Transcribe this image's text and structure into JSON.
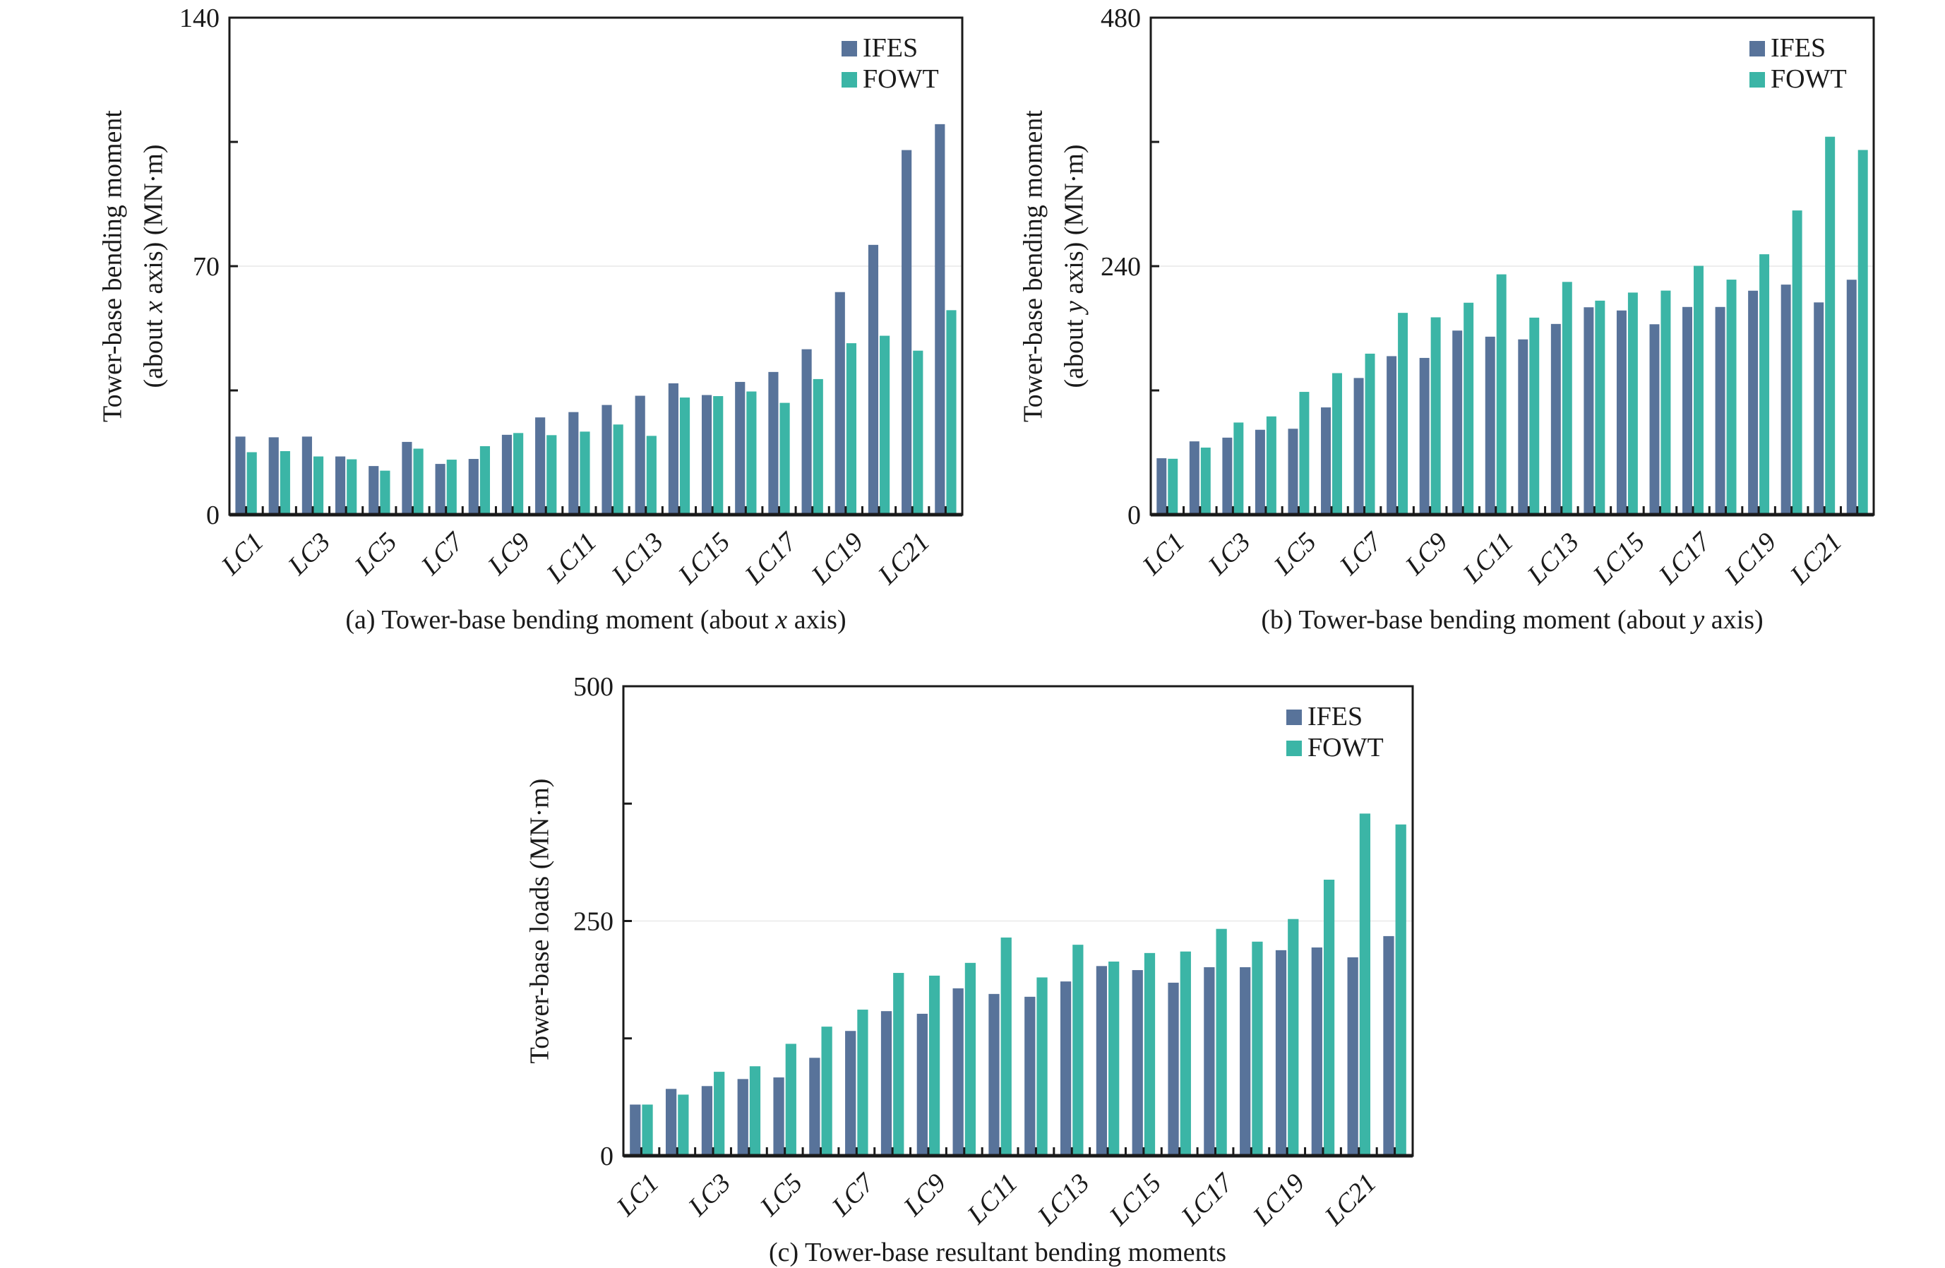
{
  "colors": {
    "IFES": "#58739a",
    "FOWT": "#3bb5a6",
    "axis": "#1a1a1a",
    "grid": "#eeeeee"
  },
  "chart_data": [
    {
      "id": "a",
      "type": "bar",
      "caption": "(a) Tower-base bending moment (about x axis)",
      "caption_parts": [
        "(a) Tower-base bending moment (about ",
        "x",
        " axis)"
      ],
      "xlabel": "",
      "ylabel_lines": [
        [
          "Tower-base bending moment"
        ],
        [
          "(about ",
          "x",
          " axis) (MN·m)"
        ]
      ],
      "ylim": [
        0,
        140
      ],
      "yticks": [
        0,
        70,
        140
      ],
      "yminor": [
        35,
        105
      ],
      "grid": [
        70
      ],
      "legend": {
        "position": "top-right",
        "entries": [
          "IFES",
          "FOWT"
        ]
      },
      "categories": [
        "LC1",
        "LC2",
        "LC3",
        "LC4",
        "LC5",
        "LC6",
        "LC7",
        "LC8",
        "LC9",
        "LC10",
        "LC11",
        "LC12",
        "LC13",
        "LC14",
        "LC15",
        "LC16",
        "LC17",
        "LC18",
        "LC19",
        "LC20",
        "LC21",
        "LC22"
      ],
      "xtick_labels_shown": [
        "LC1",
        "LC3",
        "LC5",
        "LC7",
        "LC9",
        "LC11",
        "LC13",
        "LC15",
        "LC17",
        "LC19",
        "LC21"
      ],
      "series": [
        {
          "name": "IFES",
          "values": [
            22.0,
            21.8,
            22.0,
            16.4,
            13.7,
            20.5,
            14.3,
            15.7,
            22.5,
            27.4,
            28.9,
            30.9,
            33.5,
            37.0,
            33.7,
            37.4,
            40.2,
            46.6,
            62.7,
            76.0,
            102.7,
            110.0
          ]
        },
        {
          "name": "FOWT",
          "values": [
            17.6,
            17.9,
            16.4,
            15.6,
            12.4,
            18.6,
            15.5,
            19.3,
            23.0,
            22.4,
            23.4,
            25.4,
            22.2,
            33.0,
            33.4,
            34.7,
            31.5,
            38.2,
            48.3,
            50.4,
            46.2,
            57.6
          ]
        }
      ]
    },
    {
      "id": "b",
      "type": "bar",
      "caption": "(b) Tower-base bending moment (about y axis)",
      "caption_parts": [
        "(b) Tower-base bending moment (about ",
        "y",
        " axis)"
      ],
      "xlabel": "",
      "ylabel_lines": [
        [
          "Tower-base bending moment"
        ],
        [
          "(about ",
          "y",
          " axis) (MN·m)"
        ]
      ],
      "ylim": [
        0,
        480
      ],
      "yticks": [
        0,
        240,
        480
      ],
      "yminor": [
        120,
        360
      ],
      "grid": [
        240
      ],
      "legend": {
        "position": "top-right",
        "entries": [
          "IFES",
          "FOWT"
        ]
      },
      "categories": [
        "LC1",
        "LC2",
        "LC3",
        "LC4",
        "LC5",
        "LC6",
        "LC7",
        "LC8",
        "LC9",
        "LC10",
        "LC11",
        "LC12",
        "LC13",
        "LC14",
        "LC15",
        "LC16",
        "LC17",
        "LC18",
        "LC19",
        "LC20",
        "LC21",
        "LC22"
      ],
      "xtick_labels_shown": [
        "LC1",
        "LC3",
        "LC5",
        "LC7",
        "LC9",
        "LC11",
        "LC13",
        "LC15",
        "LC17",
        "LC19",
        "LC21"
      ],
      "series": [
        {
          "name": "IFES",
          "values": [
            54.5,
            70.8,
            74.4,
            82.0,
            83.0,
            103.6,
            132.0,
            153.1,
            151.4,
            177.8,
            171.9,
            169.3,
            184.2,
            200.3,
            197.2,
            183.9,
            200.6,
            200.6,
            216.3,
            222.2,
            205.0,
            226.9
          ]
        },
        {
          "name": "FOWT",
          "values": [
            54.0,
            64.8,
            89.0,
            94.9,
            118.6,
            136.7,
            155.5,
            194.9,
            190.6,
            204.7,
            232.1,
            190.3,
            224.8,
            206.7,
            214.5,
            216.4,
            240.3,
            227.0,
            251.5,
            293.8,
            365.0,
            352.2
          ]
        }
      ]
    },
    {
      "id": "c",
      "type": "bar",
      "caption": "(c) Tower-base resultant bending moments",
      "caption_parts": [
        "(c) Tower-base resultant bending moments",
        "",
        ""
      ],
      "xlabel": "",
      "ylabel_lines": [
        [
          "Tower-base loads (MN·m)"
        ]
      ],
      "ylim": [
        0,
        500
      ],
      "yticks": [
        0,
        250,
        500
      ],
      "yminor": [
        125,
        375
      ],
      "grid": [
        250
      ],
      "legend": {
        "position": "top-right",
        "entries": [
          "IFES",
          "FOWT"
        ]
      },
      "categories": [
        "LC1",
        "LC2",
        "LC3",
        "LC4",
        "LC5",
        "LC6",
        "LC7",
        "LC8",
        "LC9",
        "LC10",
        "LC11",
        "LC12",
        "LC13",
        "LC14",
        "LC15",
        "LC16",
        "LC17",
        "LC18",
        "LC19",
        "LC20",
        "LC21",
        "LC22"
      ],
      "xtick_labels_shown": [
        "LC1",
        "LC3",
        "LC5",
        "LC7",
        "LC9",
        "LC11",
        "LC13",
        "LC15",
        "LC17",
        "LC19",
        "LC21"
      ],
      "series": [
        {
          "name": "IFES",
          "values": [
            54.5,
            71.2,
            74.2,
            81.7,
            83.4,
            104.3,
            132.9,
            154.0,
            151.2,
            178.3,
            172.3,
            169.3,
            185.6,
            202.0,
            197.7,
            184.3,
            200.8,
            200.8,
            218.9,
            221.8,
            211.3,
            233.9
          ]
        },
        {
          "name": "FOWT",
          "values": [
            54.5,
            65.1,
            89.4,
            95.3,
            119.2,
            137.5,
            155.6,
            194.7,
            191.8,
            205.4,
            232.4,
            189.9,
            224.7,
            206.8,
            215.9,
            217.5,
            241.6,
            228.0,
            252.1,
            294.0,
            364.4,
            352.8
          ]
        }
      ]
    }
  ]
}
